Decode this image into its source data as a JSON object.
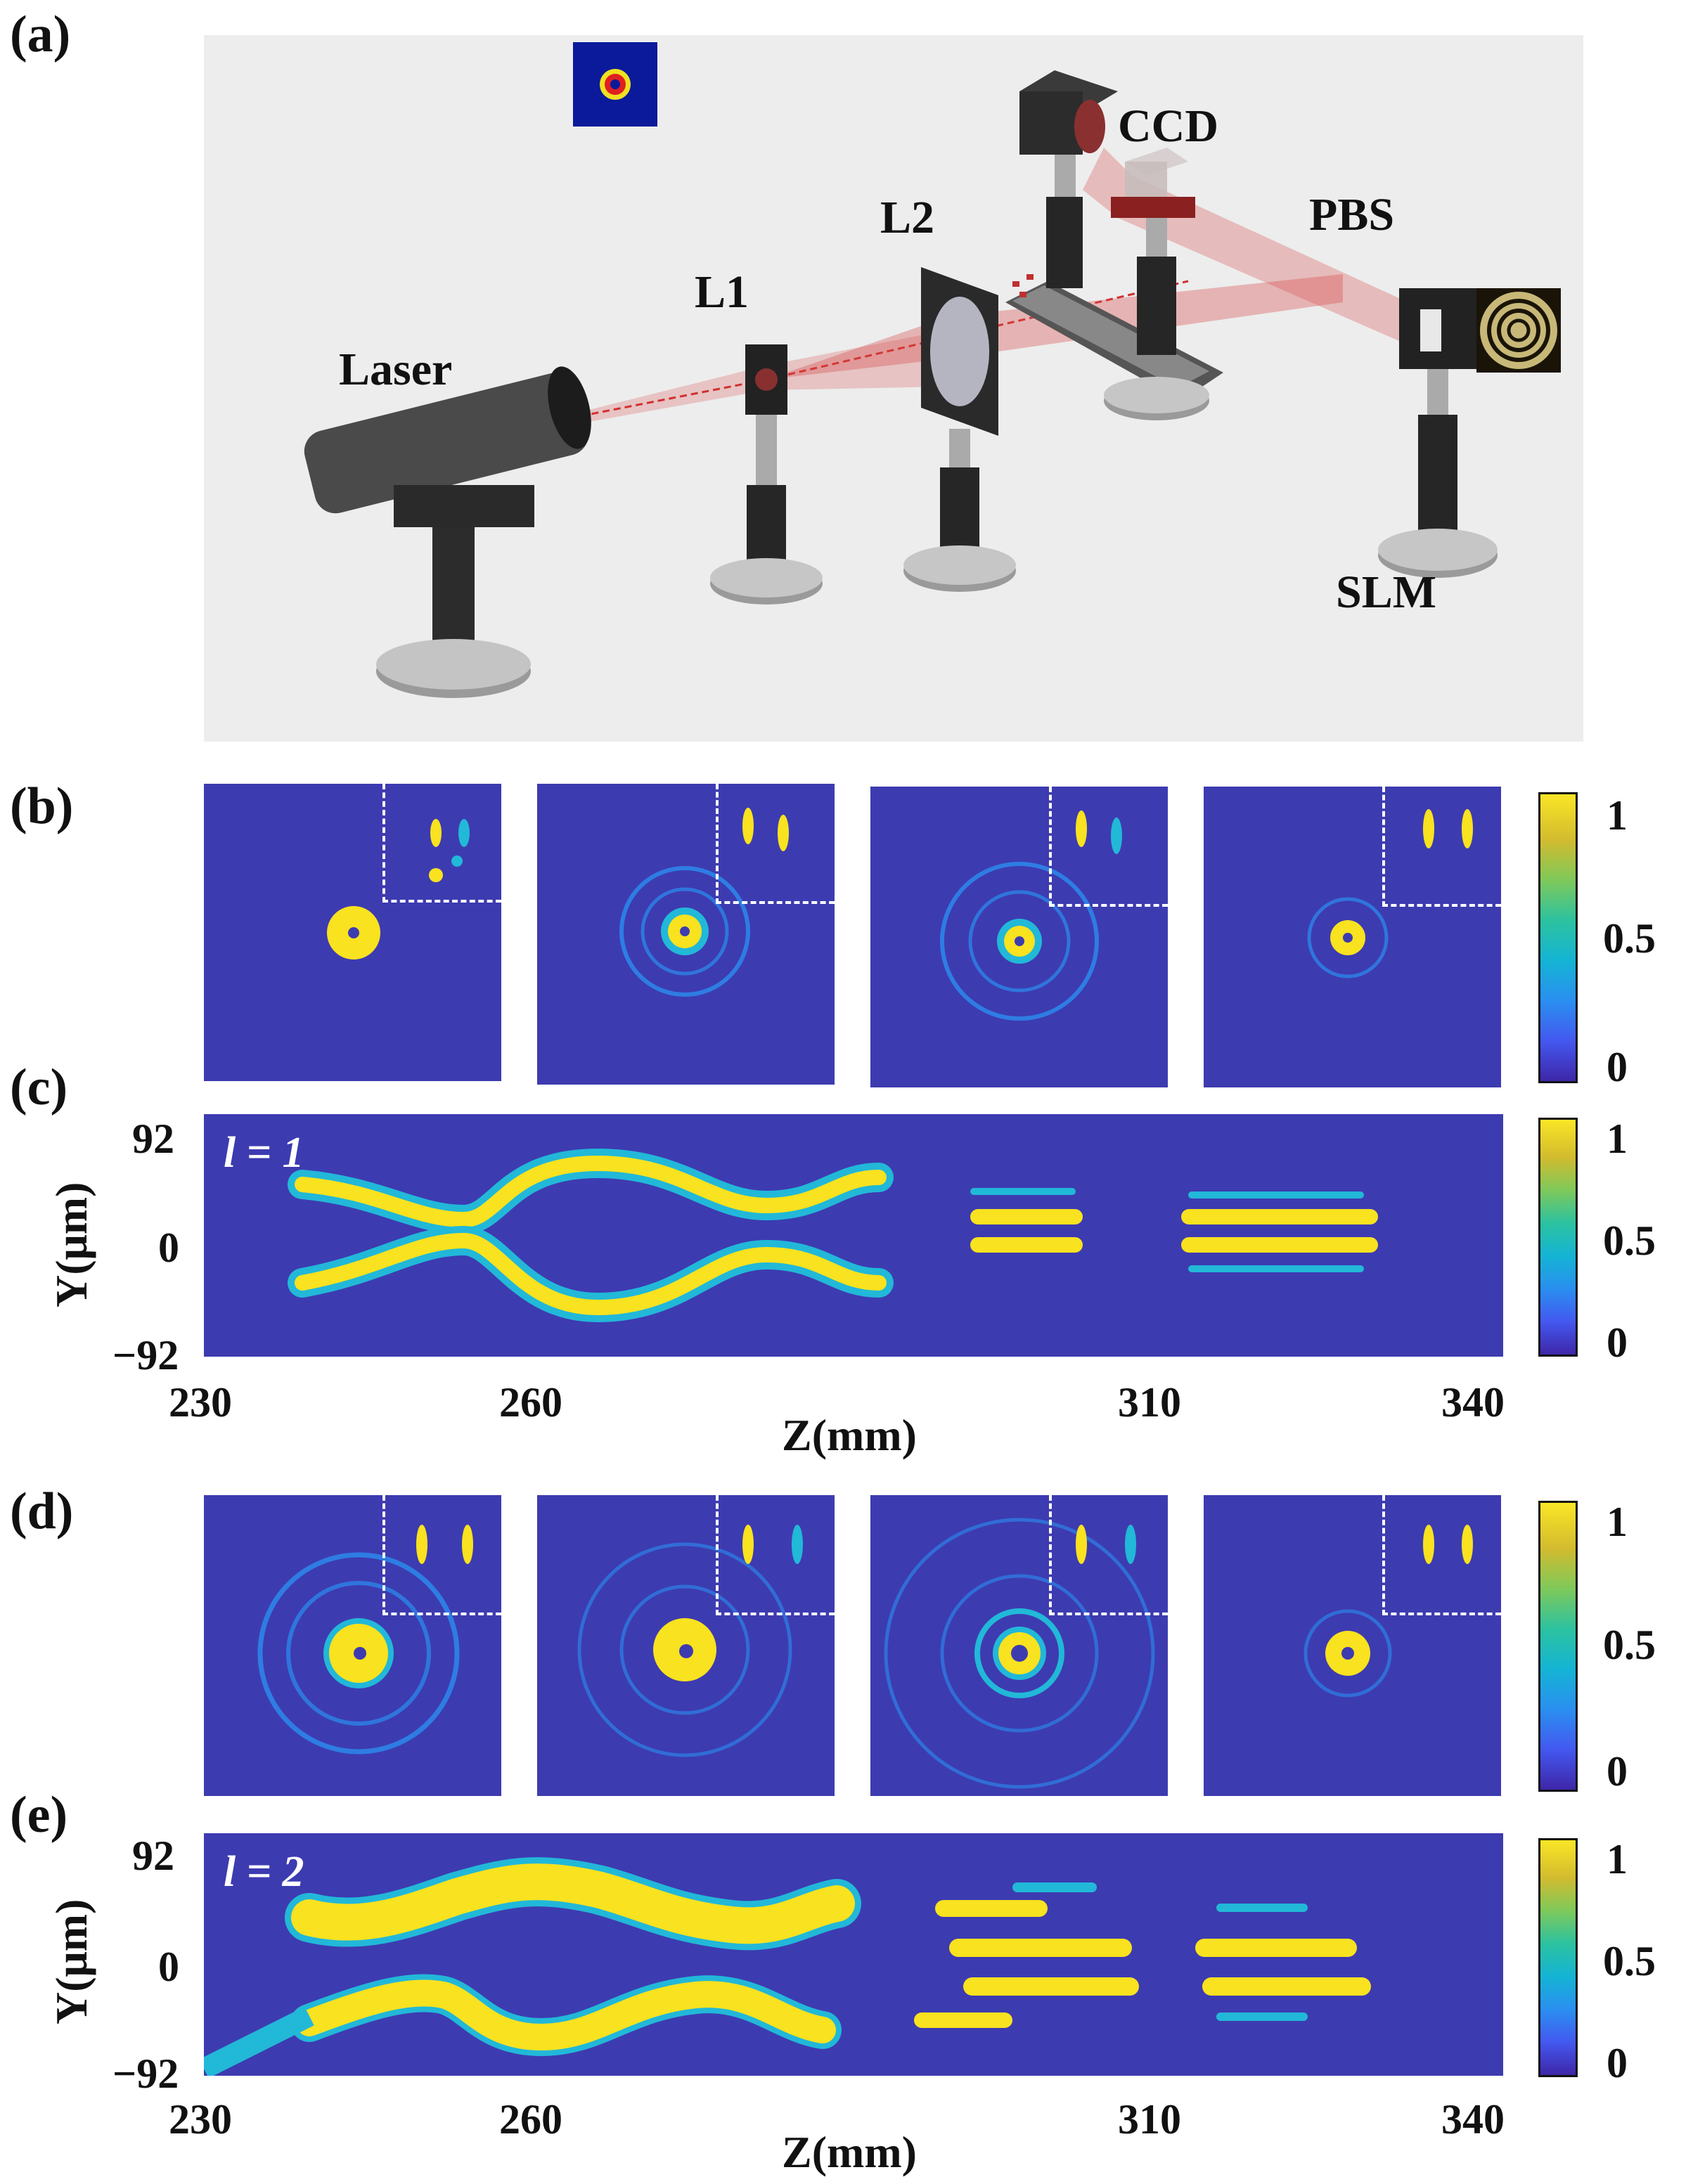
{
  "panels": {
    "a": "(a)",
    "b": "(b)",
    "c": "(c)",
    "d": "(d)",
    "e": "(e)"
  },
  "setup": {
    "laser": "Laser",
    "l1": "L1",
    "l2": "L2",
    "ccd": "CCD",
    "pbs": "PBS",
    "slm": "SLM"
  },
  "colorbar": {
    "max": "1",
    "mid": "0.5",
    "min": "0"
  },
  "profile_c": {
    "l_label": "l = 1",
    "y_ticks": [
      "92",
      "0",
      "−92"
    ],
    "x_ticks": [
      "230",
      "260",
      "310",
      "340"
    ],
    "xlabel": "Z(mm)",
    "ylabel": "Y(μm)"
  },
  "profile_e": {
    "l_label": "l = 2",
    "y_ticks": [
      "92",
      "0",
      "−92"
    ],
    "x_ticks": [
      "230",
      "260",
      "310",
      "340"
    ],
    "xlabel": "Z(mm)",
    "ylabel": "Y(μm)"
  },
  "colors": {
    "background_map": "#3d3bb0",
    "yellow": "#f9e21f",
    "cyan": "#22b8d8",
    "beam": "#d23030"
  }
}
